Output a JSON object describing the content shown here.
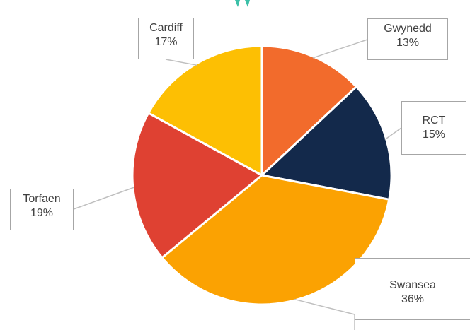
{
  "chart_data": {
    "type": "pie",
    "title": "",
    "slices": [
      {
        "label": "Gwynedd",
        "value": 13,
        "display": "13%",
        "color": "#F26B2C"
      },
      {
        "label": "RCT",
        "value": 15,
        "display": "15%",
        "color": "#13294B"
      },
      {
        "label": "Swansea",
        "value": 36,
        "display": "36%",
        "color": "#FBA202"
      },
      {
        "label": "Torfaen",
        "value": 19,
        "display": "19%",
        "color": "#DF4132"
      },
      {
        "label": "Cardiff",
        "value": 17,
        "display": "17%",
        "color": "#FDBF03"
      }
    ],
    "data_labels": "outside with leader lines",
    "accent_color": "#3CC0A8"
  }
}
